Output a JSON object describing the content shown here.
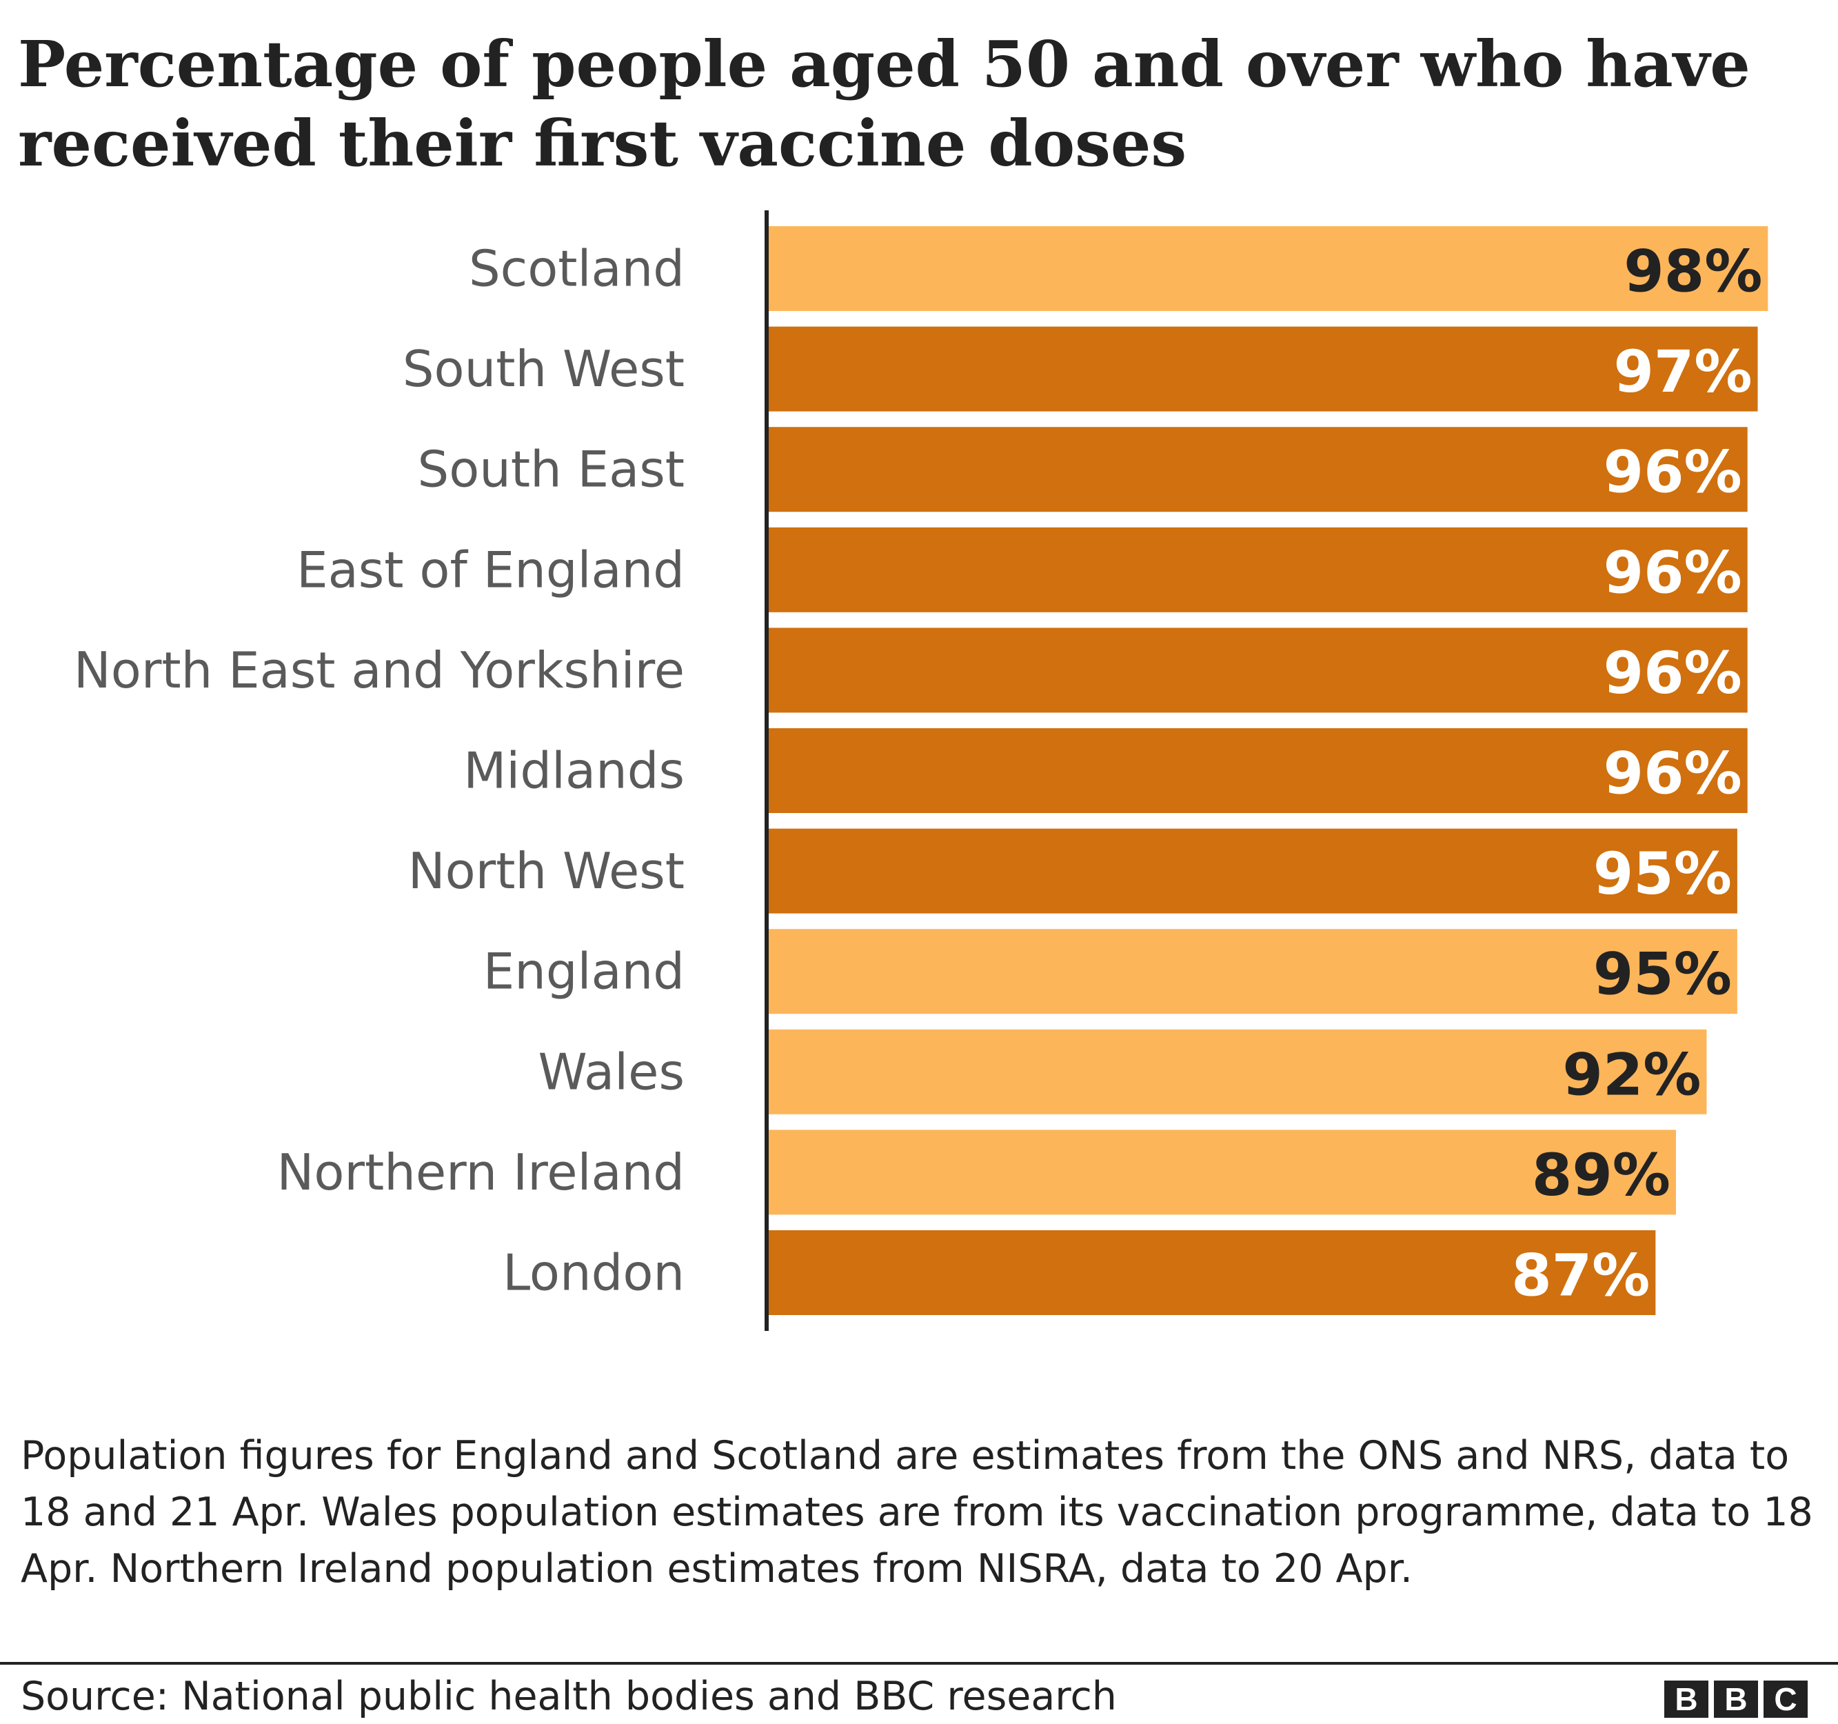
{
  "title": "Percentage of people aged 50 and over who have received their first vaccine doses",
  "colors": {
    "nation": "#fdb55a",
    "region": "#d0700e",
    "label_on_nation": "#222222",
    "label_on_region": "#ffffff",
    "axis": "#222222"
  },
  "chart_data": {
    "type": "bar",
    "orientation": "horizontal",
    "title": "Percentage of people aged 50 and over who have received their first vaccine doses",
    "xlabel": "",
    "ylabel": "",
    "xlim": [
      0,
      100
    ],
    "grid": false,
    "legend": "none",
    "unit": "%",
    "categories": [
      "Scotland",
      "South West",
      "South East",
      "East of England",
      "North East and Yorkshire",
      "Midlands",
      "North West",
      "England",
      "Wales",
      "Northern Ireland",
      "London"
    ],
    "values": [
      98,
      97,
      96,
      96,
      96,
      96,
      95,
      95,
      92,
      89,
      87
    ],
    "labels": [
      "98%",
      "97%",
      "96%",
      "96%",
      "96%",
      "96%",
      "95%",
      "95%",
      "92%",
      "89%",
      "87%"
    ],
    "bar_kind": [
      "nation",
      "region",
      "region",
      "region",
      "region",
      "region",
      "region",
      "nation",
      "nation",
      "nation",
      "region"
    ]
  },
  "footnote": "Population figures for England and Scotland are estimates from the ONS and NRS, data to 18 and 21 Apr. Wales population estimates are from its vaccination programme, data to 18 Apr. Northern Ireland population estimates from NISRA, data to 20 Apr.",
  "source": "Source: National public health bodies and BBC research",
  "logo": {
    "letters": [
      "B",
      "B",
      "C"
    ]
  }
}
